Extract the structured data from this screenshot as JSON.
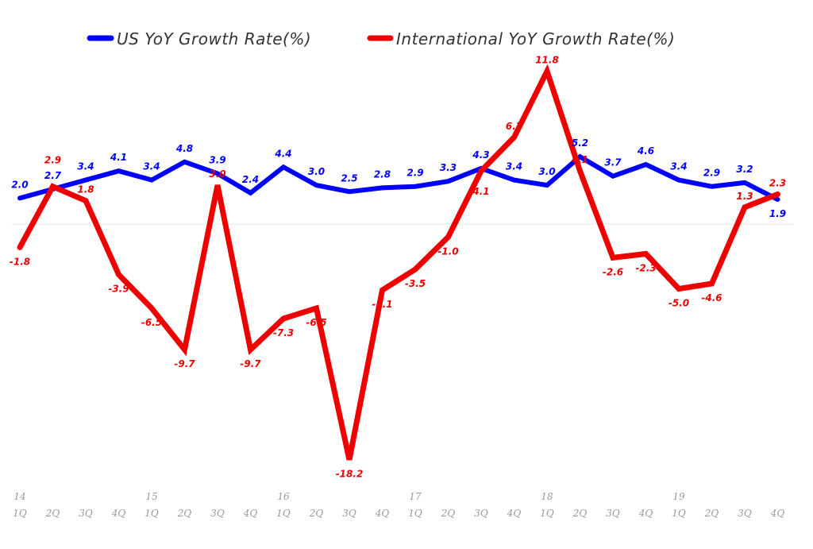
{
  "chart_data": {
    "type": "line",
    "categories": [
      [
        "14",
        "1Q"
      ],
      [
        "",
        "2Q"
      ],
      [
        "",
        "3Q"
      ],
      [
        "",
        "4Q"
      ],
      [
        "15",
        "1Q"
      ],
      [
        "",
        "2Q"
      ],
      [
        "",
        "3Q"
      ],
      [
        "",
        "4Q"
      ],
      [
        "16",
        "1Q"
      ],
      [
        "",
        "2Q"
      ],
      [
        "",
        "3Q"
      ],
      [
        "",
        "4Q"
      ],
      [
        "17",
        "1Q"
      ],
      [
        "",
        "2Q"
      ],
      [
        "",
        "3Q"
      ],
      [
        "",
        "4Q"
      ],
      [
        "18",
        "1Q"
      ],
      [
        "",
        "2Q"
      ],
      [
        "",
        "3Q"
      ],
      [
        "",
        "4Q"
      ],
      [
        "19",
        "1Q"
      ],
      [
        "",
        "2Q"
      ],
      [
        "",
        "3Q"
      ],
      [
        "",
        "4Q"
      ]
    ],
    "series": [
      {
        "name": "US YoY Growth Rate(%)",
        "color": "#0000ff",
        "values": [
          2.0,
          2.7,
          3.4,
          4.1,
          3.4,
          4.8,
          3.9,
          2.4,
          4.4,
          3.0,
          2.5,
          2.8,
          2.9,
          3.3,
          4.3,
          3.4,
          3.0,
          5.2,
          3.7,
          4.6,
          3.4,
          2.9,
          3.2,
          1.9
        ]
      },
      {
        "name": "International YoY Growth Rate(%)",
        "color": "#ee0000",
        "values": [
          -1.8,
          2.9,
          1.8,
          -3.9,
          -6.5,
          -9.7,
          3.0,
          -9.7,
          -7.3,
          -6.5,
          -18.2,
          -5.1,
          -3.5,
          -1.0,
          4.1,
          6.7,
          11.8,
          4.1,
          -2.6,
          -2.3,
          -5.0,
          -4.6,
          1.3,
          2.3
        ]
      }
    ],
    "ylim": [
      -19.5,
      13.6
    ],
    "grid": false,
    "legend": "top",
    "data_labels": true
  }
}
